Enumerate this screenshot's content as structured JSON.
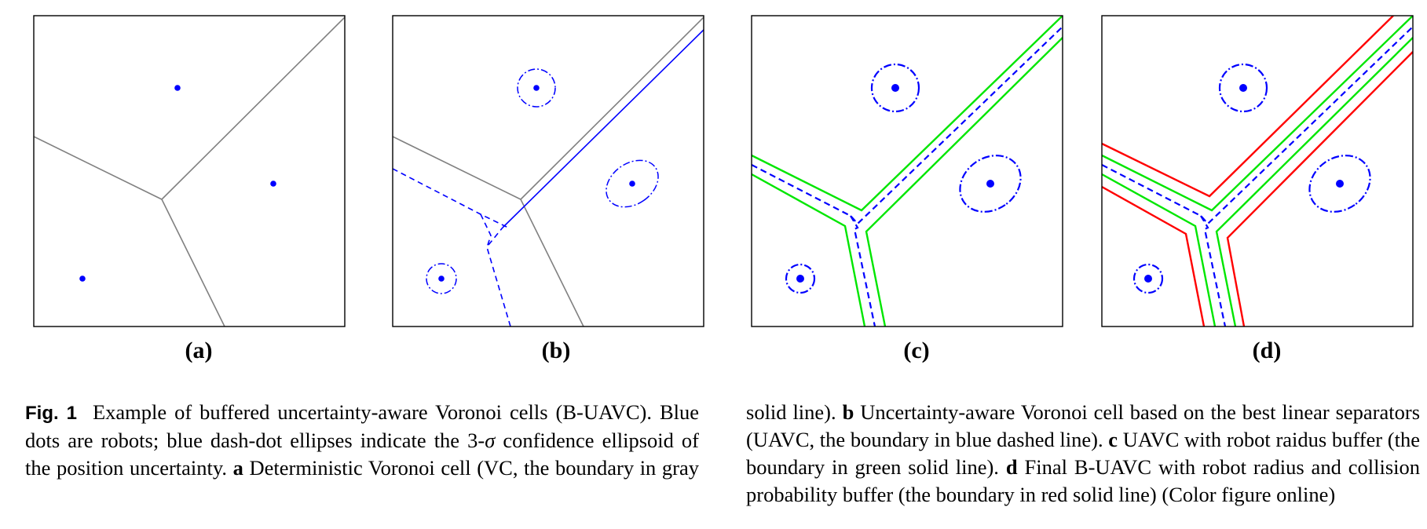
{
  "figure": {
    "subfigure_labels": [
      "(a)",
      "(b)",
      "(c)",
      "(d)"
    ],
    "colors": {
      "robot": "#0000ff",
      "vc_boundary": "#808080",
      "uavc_boundary": "#0000ff",
      "radius_buffer": "#00e600",
      "collision_buffer": "#ff0000",
      "frame": "#000000"
    },
    "caption": {
      "figure_tag": "Fig. 1",
      "part1": "Example of buffered uncertainty-aware Voronoi cells (B-UAVC). Blue dots are robots; blue dash-dot ellipses indicate the 3-",
      "sigma": "σ",
      "part2": "confidence ellipsoid of the position uncertainty.",
      "a_letter": "a",
      "a_text": "Deterministic Voronoi cell (VC, the boundary in gray solid line).",
      "b_letter": "b",
      "b_text": "Uncertainty-aware Voronoi cell based on the best linear separators (UAVC, the boundary in blue dashed line).",
      "c_letter": "c",
      "c_text": "UAVC with robot raidus buffer (the boundary in green solid line).",
      "d_letter": "d",
      "d_text": "Final B-UAVC with robot radius and collision probability buffer (the boundary in red solid line) (Color figure online)"
    }
  }
}
